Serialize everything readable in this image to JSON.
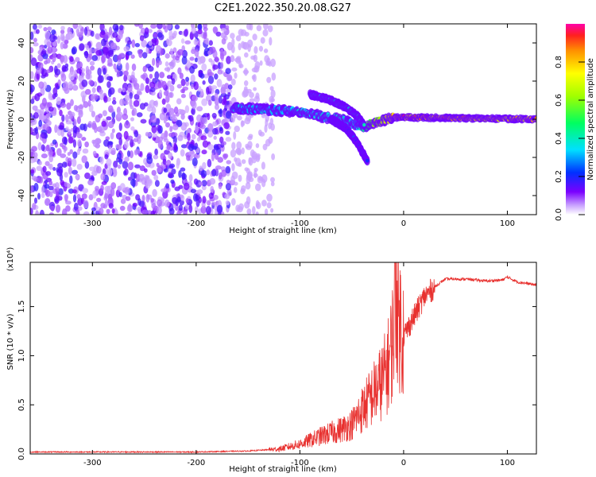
{
  "figure_title": "C2E1.2022.350.20.08.G27",
  "chart_data": [
    {
      "type": "heatmap",
      "title": "C2E1.2022.350.20.08.G27",
      "xlabel": "Height of straight line (km)",
      "ylabel": "Frequency (Hz)",
      "xlim": [
        -360,
        128
      ],
      "ylim": [
        -50,
        50
      ],
      "x_ticks": [
        -300,
        -200,
        -100,
        0,
        100
      ],
      "y_ticks": [
        -40,
        -20,
        0,
        20,
        40
      ],
      "colorbar": {
        "label": "Normalized spectral amplitude",
        "range": [
          0.0,
          1.0
        ],
        "ticks": [
          0.0,
          0.2,
          0.4,
          0.6,
          0.8
        ],
        "tick_labels": [
          "0.0",
          "0.2",
          "0.4",
          "0.6",
          "0.8"
        ]
      },
      "features": [
        {
          "segment": "scattered noise",
          "x_range": [
            -360,
            -165
          ],
          "freq_range": [
            -50,
            50
          ],
          "amplitude": 0.1
        },
        {
          "segment": "faint scatter",
          "x_range": [
            -165,
            -125
          ],
          "freq_range": [
            -50,
            50
          ],
          "amplitude": 0.03
        },
        {
          "segment": "main band",
          "x": [
            -165,
            -130,
            -100,
            -75,
            -60,
            -45,
            -38,
            -30,
            -10,
            0,
            128
          ],
          "freq": [
            6,
            5,
            4,
            1,
            0,
            -3,
            -4,
            -2,
            1,
            1,
            0
          ],
          "amplitude": [
            0.35,
            0.35,
            0.38,
            0.4,
            0.42,
            0.35,
            0.5,
            0.6,
            0.85,
            0.9,
            0.8
          ]
        },
        {
          "segment": "branch",
          "x": [
            -90,
            -70,
            -55,
            -45,
            -38
          ],
          "freq": [
            13,
            10,
            6,
            2,
            -3
          ],
          "amplitude": 0.4
        },
        {
          "segment": "descending branch",
          "x": [
            -70,
            -55,
            -45,
            -35
          ],
          "freq": [
            0,
            -5,
            -12,
            -22
          ],
          "amplitude": 0.25
        }
      ]
    },
    {
      "type": "line",
      "xlabel": "Height of straight line (km)",
      "ylabel": "SNR (10 * v/v)",
      "y_multiplier": "(x10⁴)",
      "xlim": [
        -360,
        128
      ],
      "ylim": [
        0,
        1.95
      ],
      "x_ticks": [
        -300,
        -200,
        -100,
        0,
        100
      ],
      "y_ticks": [
        0.0,
        0.5,
        1.0,
        1.5
      ],
      "y_tick_labels": [
        "0.0",
        "0.5",
        "1.0",
        "1.5"
      ],
      "series": [
        {
          "color": "#e8312f",
          "x": [
            -360,
            -300,
            -250,
            -200,
            -150,
            -120,
            -100,
            -80,
            -60,
            -50,
            -40,
            -30,
            -20,
            -15,
            -10,
            -8,
            -5,
            0,
            10,
            20,
            30,
            40,
            60,
            80,
            95,
            100,
            110,
            128
          ],
          "y": [
            0.02,
            0.02,
            0.02,
            0.02,
            0.03,
            0.05,
            0.1,
            0.18,
            0.25,
            0.3,
            0.45,
            0.6,
            0.75,
            0.9,
            1.2,
            1.9,
            1.4,
            1.2,
            1.4,
            1.6,
            1.7,
            1.78,
            1.78,
            1.76,
            1.77,
            1.8,
            1.75,
            1.72
          ]
        }
      ]
    }
  ]
}
